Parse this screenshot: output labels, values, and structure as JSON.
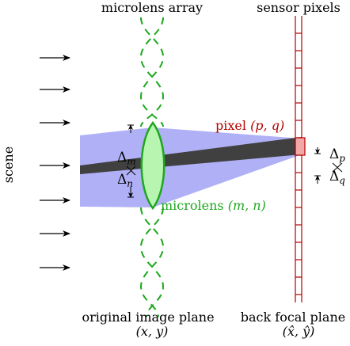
{
  "labels": {
    "microlens_array": "microlens array",
    "sensor_pixels": "sensor pixels",
    "scene": "scene",
    "pixel_word": "pixel ",
    "pixel_coords": "(p, q)",
    "microlens_word": "microlens ",
    "microlens_coords": "(m, n)",
    "delta_m": "Δ",
    "delta_m_sub": "m",
    "delta_n": "Δ",
    "delta_n_sub": "n",
    "delta_p": "Δ",
    "delta_p_sub": "p",
    "delta_q": "Δ",
    "delta_q_sub": "q",
    "original_plane": "original image plane",
    "original_coords": "(x, y)",
    "back_focal_plane": "back focal plane",
    "back_focal_coords": "(x̂, ŷ)"
  },
  "colors": {
    "beam_fill": "#b0b0f7",
    "ray": "#404040",
    "lens_fill": "#b8f5b0",
    "lens_stroke": "#1ea81e",
    "pixel_fill": "#f3a8a8",
    "sensor_stroke": "#b30000",
    "pixel_label": "#b30000",
    "microlens_label": "#1ea81e",
    "text": "#000000"
  },
  "icons": {
    "scene_arrows": "right-arrow-icon",
    "delta_markers": "tick-arrow-icon"
  }
}
